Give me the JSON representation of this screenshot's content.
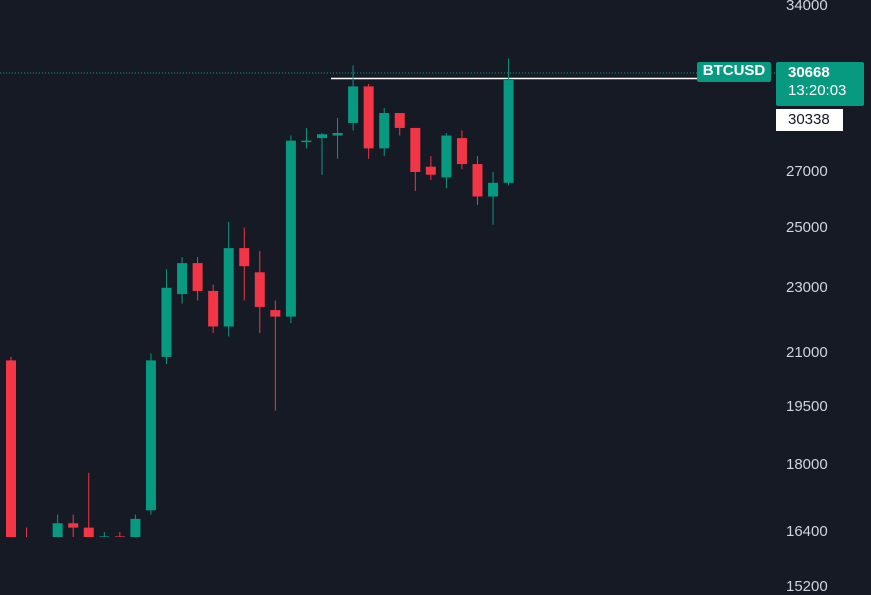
{
  "chart_data": {
    "type": "candlestick",
    "symbol": "BTCUSD",
    "price_scale": "log",
    "y_range": [
      15000,
      35000
    ],
    "y_ticks": [
      "34000",
      "27000",
      "25000",
      "23000",
      "21000",
      "19500",
      "18000",
      "16400",
      "15200"
    ],
    "last_price": "30668",
    "countdown": "13:20:03",
    "marked_price": "30338",
    "candles": [
      {
        "o": 20800,
        "h": 20900,
        "l": 15400,
        "c": 15600
      },
      {
        "o": 15600,
        "h": 16500,
        "l": 15300,
        "c": 15550
      },
      {
        "o": 15550,
        "h": 16000,
        "l": 15100,
        "c": 15700
      },
      {
        "o": 15700,
        "h": 16800,
        "l": 15400,
        "c": 16600
      },
      {
        "o": 16600,
        "h": 16800,
        "l": 16200,
        "c": 16500
      },
      {
        "o": 16500,
        "h": 17800,
        "l": 15800,
        "c": 16200
      },
      {
        "o": 16150,
        "h": 16400,
        "l": 15900,
        "c": 16300
      },
      {
        "o": 16300,
        "h": 16400,
        "l": 15900,
        "c": 16000
      },
      {
        "o": 16100,
        "h": 16800,
        "l": 16000,
        "c": 16700
      },
      {
        "o": 16900,
        "h": 21000,
        "l": 16800,
        "c": 20800
      },
      {
        "o": 20900,
        "h": 23600,
        "l": 20700,
        "c": 23000
      },
      {
        "o": 22800,
        "h": 24000,
        "l": 22500,
        "c": 23800
      },
      {
        "o": 23800,
        "h": 24000,
        "l": 22600,
        "c": 22900
      },
      {
        "o": 22900,
        "h": 23100,
        "l": 21600,
        "c": 21800
      },
      {
        "o": 21800,
        "h": 25200,
        "l": 21500,
        "c": 24300
      },
      {
        "o": 24300,
        "h": 25000,
        "l": 22600,
        "c": 23700
      },
      {
        "o": 23500,
        "h": 24200,
        "l": 21600,
        "c": 22400
      },
      {
        "o": 22300,
        "h": 22600,
        "l": 19400,
        "c": 22100
      },
      {
        "o": 22100,
        "h": 28400,
        "l": 21900,
        "c": 28200
      },
      {
        "o": 28200,
        "h": 28700,
        "l": 27900,
        "c": 28200
      },
      {
        "o": 28300,
        "h": 28500,
        "l": 26900,
        "c": 28450
      },
      {
        "o": 28400,
        "h": 29100,
        "l": 27500,
        "c": 28500
      },
      {
        "o": 28900,
        "h": 31300,
        "l": 28600,
        "c": 30400
      },
      {
        "o": 30400,
        "h": 30500,
        "l": 27500,
        "c": 27900
      },
      {
        "o": 27900,
        "h": 29500,
        "l": 27600,
        "c": 29300
      },
      {
        "o": 29300,
        "h": 29300,
        "l": 28400,
        "c": 28700
      },
      {
        "o": 28700,
        "h": 28700,
        "l": 26300,
        "c": 27000
      },
      {
        "o": 27200,
        "h": 27600,
        "l": 26700,
        "c": 26900
      },
      {
        "o": 26800,
        "h": 28500,
        "l": 26400,
        "c": 28400
      },
      {
        "o": 28300,
        "h": 28600,
        "l": 27100,
        "c": 27300
      },
      {
        "o": 27300,
        "h": 27600,
        "l": 25800,
        "c": 26100
      },
      {
        "o": 26100,
        "h": 27000,
        "l": 25100,
        "c": 26600
      },
      {
        "o": 26600,
        "h": 31600,
        "l": 26500,
        "c": 30668
      }
    ]
  },
  "colors": {
    "up": "#089981",
    "down": "#f23645",
    "background": "#161a25",
    "text": "#d1d4dc"
  }
}
